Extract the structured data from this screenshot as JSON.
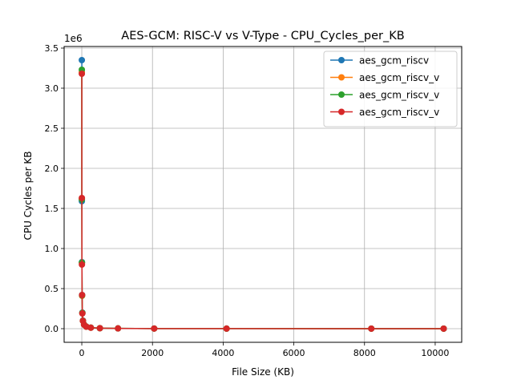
{
  "chart_data": {
    "type": "line",
    "title": "AES-GCM: RISC-V vs V-Type - CPU_Cycles_per_KB",
    "xlabel": "File Size (KB)",
    "ylabel": "CPU Cycles per KB",
    "y_multiplier_label": "1e6",
    "xlim": [
      -500,
      10750
    ],
    "ylim": [
      -170000,
      3520000
    ],
    "x_ticks": [
      0,
      2000,
      4000,
      6000,
      8000,
      10000
    ],
    "x_tick_labels": [
      "0",
      "2000",
      "4000",
      "6000",
      "8000",
      "10000"
    ],
    "y_ticks": [
      0,
      500000,
      1000000,
      1500000,
      2000000,
      2500000,
      3000000,
      3500000
    ],
    "y_tick_labels": [
      "0.0",
      "0.5",
      "1.0",
      "1.5",
      "2.0",
      "2.5",
      "3.0",
      "3.5"
    ],
    "grid": true,
    "legend_position": "top-right",
    "x": [
      1,
      2,
      4,
      8,
      16,
      32,
      64,
      128,
      256,
      512,
      1024,
      2048,
      4096,
      8192,
      10240
    ],
    "series": [
      {
        "name": "aes_gcm_riscv",
        "color": "#1f77b4",
        "values": [
          3350000,
          1590000,
          830000,
          420000,
          200000,
          100000,
          52000,
          26000,
          13000,
          6500,
          3300,
          1700,
          900,
          500,
          400
        ]
      },
      {
        "name": "aes_gcm_riscv_v",
        "color": "#ff7f0e",
        "values": [
          3200000,
          1620000,
          820000,
          410000,
          195000,
          98000,
          50000,
          25000,
          12500,
          6300,
          3200,
          1600,
          850,
          450,
          380
        ]
      },
      {
        "name": "aes_gcm_riscv_v",
        "color": "#2ca02c",
        "values": [
          3230000,
          1610000,
          825000,
          415000,
          198000,
          99000,
          51000,
          25500,
          12800,
          6400,
          3250,
          1650,
          870,
          470,
          390
        ]
      },
      {
        "name": "aes_gcm_riscv_v",
        "color": "#d62728",
        "values": [
          3180000,
          1630000,
          800000,
          420000,
          190000,
          97000,
          49000,
          24500,
          12300,
          6200,
          3150,
          1580,
          820,
          440,
          370
        ]
      }
    ]
  }
}
